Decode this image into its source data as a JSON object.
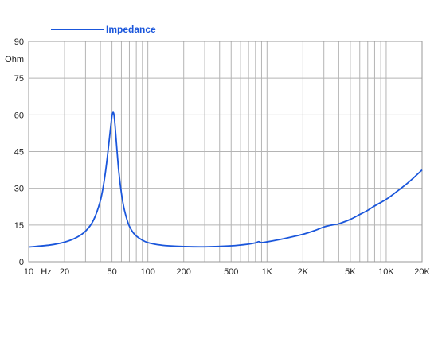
{
  "chart_data": {
    "type": "line",
    "title": "",
    "xlabel": "Hz",
    "ylabel": "Ohm",
    "x_scale": "log",
    "xlim": [
      10,
      20000
    ],
    "ylim": [
      0,
      90
    ],
    "grid": true,
    "legend_position": "top-left",
    "x_ticks": [
      {
        "value": 10,
        "label": "10"
      },
      {
        "value": 20,
        "label": "20"
      },
      {
        "value": 50,
        "label": "50"
      },
      {
        "value": 100,
        "label": "100"
      },
      {
        "value": 200,
        "label": "200"
      },
      {
        "value": 500,
        "label": "500"
      },
      {
        "value": 1000,
        "label": "1K"
      },
      {
        "value": 2000,
        "label": "2K"
      },
      {
        "value": 5000,
        "label": "5K"
      },
      {
        "value": 10000,
        "label": "10K"
      },
      {
        "value": 20000,
        "label": "20K"
      }
    ],
    "y_ticks": [
      0,
      15,
      30,
      45,
      60,
      75,
      90
    ],
    "series": [
      {
        "name": "Impedance",
        "color": "#1a56db",
        "x": [
          10,
          15,
          20,
          25,
          30,
          35,
          40,
          43,
          45,
          47,
          49,
          50,
          51,
          52,
          53,
          55,
          57,
          60,
          63,
          67,
          70,
          75,
          80,
          90,
          100,
          120,
          150,
          200,
          300,
          500,
          700,
          800,
          850,
          900,
          1000,
          1200,
          1500,
          2000,
          2500,
          3000,
          3500,
          3800,
          4000,
          5000,
          6000,
          7000,
          8000,
          10000,
          12000,
          15000,
          17000,
          20000
        ],
        "values": [
          6.0,
          6.8,
          8.0,
          9.8,
          12.5,
          17.0,
          25.0,
          33.0,
          40.0,
          48.0,
          56.0,
          59.5,
          61.0,
          60.0,
          56.0,
          46.0,
          37.0,
          28.0,
          22.0,
          17.0,
          14.5,
          12.0,
          10.5,
          8.8,
          7.8,
          7.0,
          6.5,
          6.2,
          6.1,
          6.5,
          7.2,
          7.7,
          8.2,
          7.8,
          8.1,
          8.8,
          9.8,
          11.2,
          12.7,
          14.2,
          15.0,
          15.3,
          15.5,
          17.3,
          19.3,
          21.0,
          22.8,
          25.5,
          28.3,
          32.0,
          34.3,
          37.5
        ]
      }
    ]
  }
}
